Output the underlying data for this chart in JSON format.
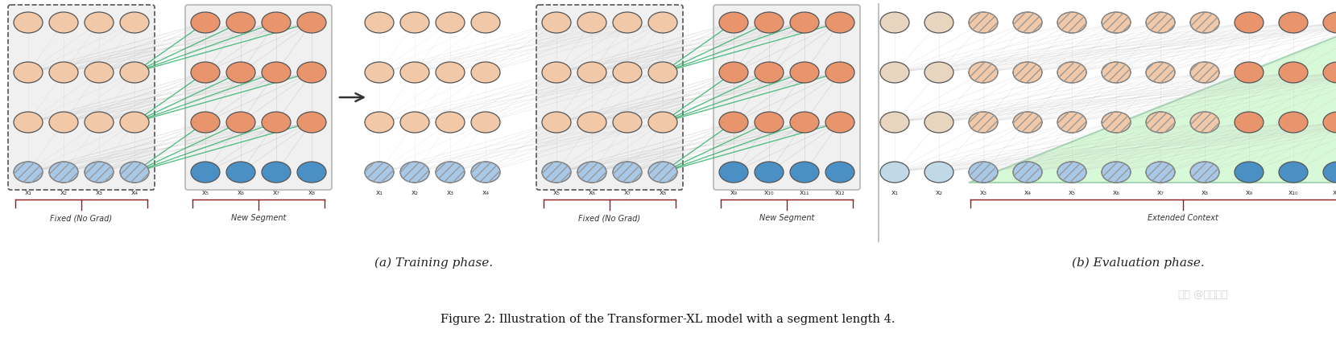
{
  "bg_color": "#ffffff",
  "node_orange_solid": "#E8956D",
  "node_blue_solid": "#4A90C4",
  "node_orange_light": "#F2C9A8",
  "node_blue_light": "#A8C8E8",
  "node_orange_faded": "#E8D5C0",
  "node_blue_faded": "#C0D8E8",
  "green_line": "#3CB371",
  "gray_line": "#C0C0C0",
  "dashed_box_color": "#555555",
  "gray_bg": "#EFEFEF",
  "brace_color": "#8B1A1A",
  "green_fill": "#90EE90",
  "fig_width": 16.59,
  "fig_height": 4.5,
  "caption": "Figure 2: Illustration of the Transformer-XL model with a segment length 4.",
  "label_a": "(a) Training phase.",
  "label_b": "(b) Evaluation phase.",
  "watermark": "知乎 @梅妻鹤子"
}
